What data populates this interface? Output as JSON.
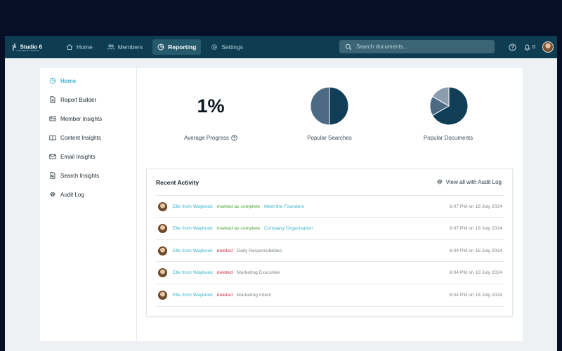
{
  "brand": {
    "name": "Studio 6",
    "tagline": "A WAYBOOK COMPANY"
  },
  "nav": {
    "items": [
      {
        "label": "Home",
        "icon": "home-icon",
        "active": false
      },
      {
        "label": "Members",
        "icon": "members-icon",
        "active": false
      },
      {
        "label": "Reporting",
        "icon": "reporting-icon",
        "active": true
      },
      {
        "label": "Settings",
        "icon": "gear-icon",
        "active": false
      }
    ]
  },
  "search": {
    "placeholder": "Search documents...",
    "value": ""
  },
  "notifications": {
    "count": "0"
  },
  "sidebar": {
    "items": [
      {
        "label": "Home",
        "icon": "home-icon",
        "active": true
      },
      {
        "label": "Report Builder",
        "icon": "document-icon",
        "active": false
      },
      {
        "label": "Member Insights",
        "icon": "member-card-icon",
        "active": false
      },
      {
        "label": "Content Insights",
        "icon": "book-icon",
        "active": false
      },
      {
        "label": "Email Insights",
        "icon": "envelope-icon",
        "active": false
      },
      {
        "label": "Search Insights",
        "icon": "document-search-icon",
        "active": false
      },
      {
        "label": "Audit Log",
        "icon": "fingerprint-icon",
        "active": false
      }
    ]
  },
  "stats": {
    "average_progress": {
      "value": "1%",
      "label": "Average Progress"
    },
    "popular_searches": {
      "label": "Popular Searches"
    },
    "popular_documents": {
      "label": "Popular Documents"
    }
  },
  "chart_data": [
    {
      "type": "pie",
      "labels": [
        "",
        ""
      ],
      "values": [
        50,
        50
      ],
      "colors": [
        "#103e56",
        "#4d6a84"
      ]
    },
    {
      "type": "pie",
      "labels": [
        "",
        "",
        ""
      ],
      "values": [
        66.7,
        16.7,
        16.6
      ],
      "colors": [
        "#103e56",
        "#4d6a84",
        "#8a9cae"
      ]
    }
  ],
  "recent_activity": {
    "title": "Recent Activity",
    "view_all_label": "View all with Audit Log",
    "rows": [
      {
        "user": "Elle from Waybook",
        "verb": "marked as complete",
        "verb_type": "complete",
        "target": "Meet the Founders",
        "target_style": "teal",
        "time": "6:07 PM on 18 July 2024"
      },
      {
        "user": "Elle from Waybook",
        "verb": "marked as complete",
        "verb_type": "complete",
        "target": "Company Organisation",
        "target_style": "teal",
        "time": "6:07 PM on 18 July 2024"
      },
      {
        "user": "Elle from Waybook",
        "verb": "deleted",
        "verb_type": "deleted",
        "target": "Daily Responsibilities",
        "target_style": "grey",
        "time": "6:04 PM on 18 July 2024"
      },
      {
        "user": "Elle from Waybook",
        "verb": "deleted",
        "verb_type": "deleted",
        "target": "Marketing Executive",
        "target_style": "grey",
        "time": "6:04 PM on 18 July 2024"
      },
      {
        "user": "Elle from Waybook",
        "verb": "deleted",
        "verb_type": "deleted",
        "target": "Marketing Intern",
        "target_style": "grey",
        "time": "6:04 PM on 18 July 2024"
      }
    ]
  }
}
